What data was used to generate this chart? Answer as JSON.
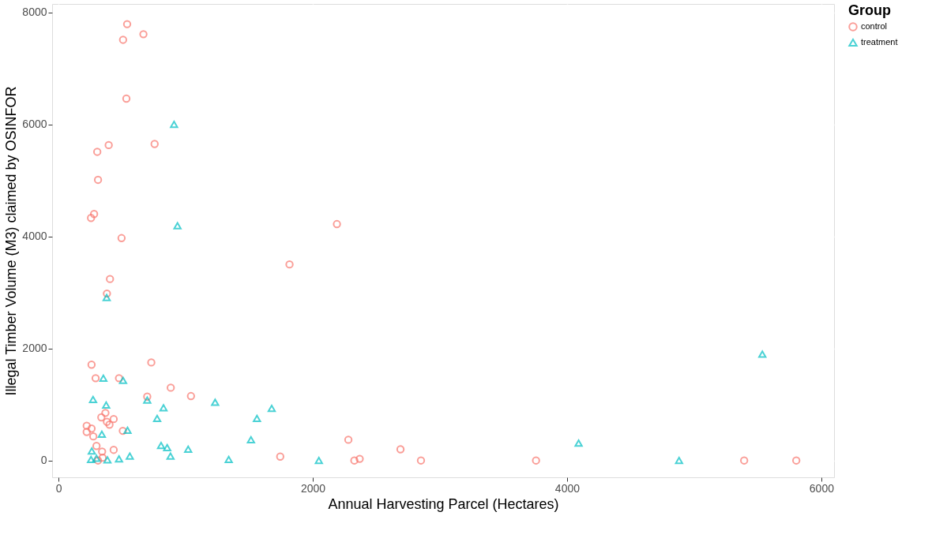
{
  "chart_data": {
    "type": "scatter",
    "xlabel": "Annual Harvesting Parcel (Hectares)",
    "ylabel": "Illegal Timber Volume (M3) claimed by OSINFOR",
    "legend_title": "Group",
    "legend": "right",
    "grid": true,
    "xlim": [
      -50,
      6100
    ],
    "xticks": [
      0,
      2000,
      4000,
      6000
    ],
    "ylim": [
      -300,
      8150
    ],
    "yticks": [
      0,
      2000,
      4000,
      6000,
      8000
    ],
    "series": [
      {
        "name": "control",
        "color": "#f8766d",
        "marker": "circle",
        "x": [
          540,
          668,
          508,
          534,
          395,
          756,
          305,
          311,
          256,
          280,
          496,
          405,
          381,
          1817,
          2190,
          5803,
          5393,
          3756,
          2851,
          2690,
          2327,
          2369,
          2280,
          1744,
          260,
          730,
          292,
          476,
          883,
          698,
          1042,
          369,
          337,
          434,
          381,
          401,
          222,
          260,
          222,
          274,
          506,
          299,
          343,
          434,
          311,
          347
        ],
        "values": [
          7790,
          7610,
          7510,
          6460,
          5630,
          5650,
          5510,
          5010,
          4330,
          4400,
          3970,
          3240,
          2980,
          3500,
          4220,
          0,
          0,
          0,
          0,
          200,
          0,
          30,
          370,
          70,
          1710,
          1750,
          1470,
          1470,
          1300,
          1140,
          1150,
          850,
          770,
          740,
          690,
          640,
          620,
          570,
          510,
          430,
          530,
          260,
          160,
          190,
          0,
          50
        ]
      },
      {
        "name": "treatment",
        "color": "#00bfc4",
        "marker": "triangle",
        "x": [
          909,
          936,
          379,
          5536,
          4881,
          4091,
          2048,
          353,
          508,
          272,
          375,
          698,
          826,
          1232,
          776,
          1677,
          1561,
          341,
          543,
          1514,
          807,
          855,
          1020,
          881,
          561,
          476,
          1339,
          262,
          256,
          385,
          299
        ],
        "values": [
          6000,
          4190,
          2910,
          1900,
          0,
          310,
          0,
          1470,
          1430,
          1090,
          990,
          1080,
          940,
          1040,
          750,
          930,
          750,
          470,
          540,
          370,
          270,
          230,
          200,
          80,
          80,
          30,
          20,
          170,
          20,
          10,
          40
        ]
      }
    ]
  }
}
